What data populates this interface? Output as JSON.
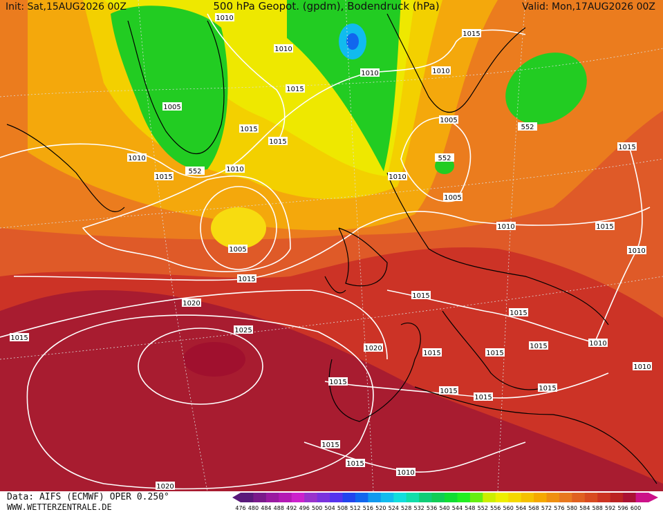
{
  "header": {
    "init": "Init: Sat,15AUG2026 00Z",
    "title": "500 hPa Geopot. (gpdm), Bodendruck (hPa)",
    "valid": "Valid: Mon,17AUG2026 00Z"
  },
  "footer": {
    "data": "Data: AIFS (ECMWF) OPER 0.250°",
    "site": "WWW.WETTERZENTRALE.DE"
  },
  "contour_labels": [
    1010,
    1015,
    1010,
    1010,
    1010,
    1015,
    1005,
    1015,
    1015,
    1005,
    552,
    1010,
    552,
    1010,
    552,
    1015,
    1015,
    1010,
    1005,
    1010,
    1015,
    1005,
    1010,
    1015,
    1015,
    1020,
    1015,
    1025,
    1015,
    1020,
    1015,
    1010,
    1015,
    1015,
    1010,
    1015,
    1015,
    1015,
    1015,
    1015,
    1015,
    1010,
    1020
  ],
  "legend": {
    "levels": [
      476,
      480,
      484,
      488,
      492,
      496,
      500,
      504,
      508,
      512,
      516,
      520,
      524,
      528,
      532,
      536,
      540,
      544,
      548,
      552,
      556,
      560,
      564,
      568,
      572,
      576,
      580,
      584,
      588,
      592,
      596,
      600
    ],
    "colors": [
      "#5a1a7a",
      "#7a1a8a",
      "#9a1aa0",
      "#b41ab4",
      "#cc22cc",
      "#9933cc",
      "#7a33dd",
      "#5533ee",
      "#2244ee",
      "#1166ee",
      "#1199ee",
      "#11bbee",
      "#11dddd",
      "#11ddaa",
      "#11cc77",
      "#11cc55",
      "#11dd33",
      "#22ee22",
      "#66ee11",
      "#ccee00",
      "#eeee00",
      "#f5d800",
      "#f5c000",
      "#f5a800",
      "#ef8f10",
      "#e87820",
      "#e06020",
      "#d84a20",
      "#cc3322",
      "#bb2222",
      "#aa1133",
      "#cc1188"
    ]
  }
}
